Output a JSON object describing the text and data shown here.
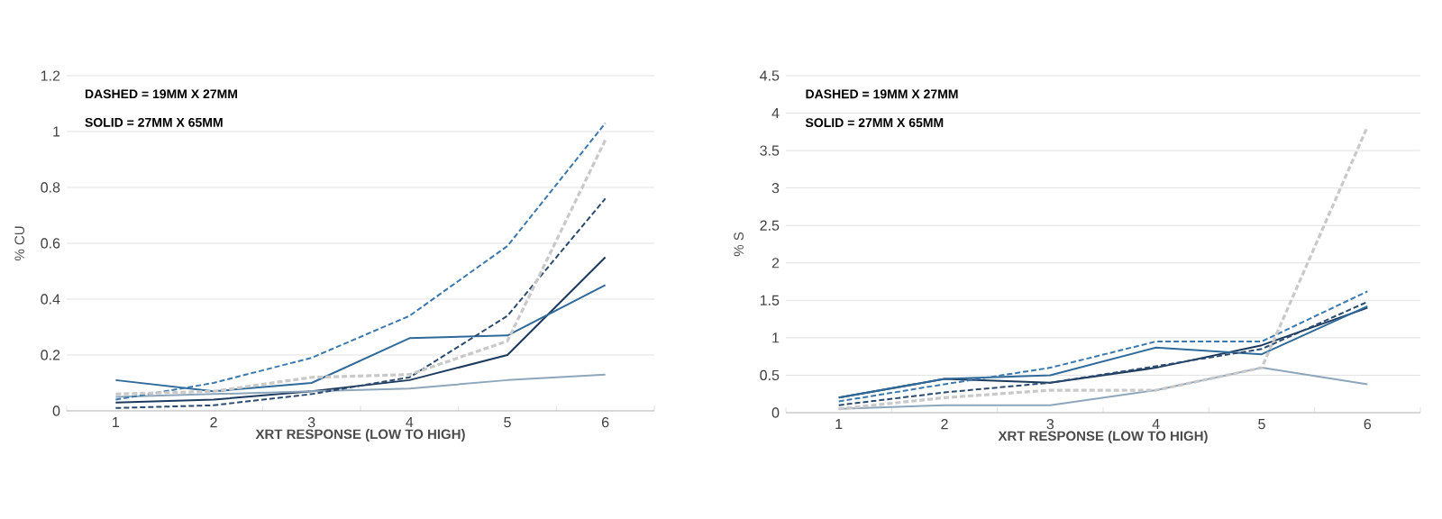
{
  "chart_data": [
    {
      "type": "line",
      "ylabel": "% CU",
      "xlabel": "XRT RESPONSE (LOW TO HIGH)",
      "categories": [
        "1",
        "2",
        "3",
        "4",
        "5",
        "6"
      ],
      "ylim": [
        0,
        1.2
      ],
      "yticks": [
        0,
        0.2,
        0.4,
        0.6,
        0.8,
        1,
        1.2
      ],
      "grid": "y",
      "legend": false,
      "marker": "none",
      "annotations": [
        "DASHED = 19MM X 27MM",
        "SOLID     = 27MM X 65MM"
      ],
      "series": [
        {
          "color": "#1c3a5e",
          "line_style": "solid",
          "values": [
            0.03,
            0.04,
            0.07,
            0.11,
            0.2,
            0.55
          ]
        },
        {
          "color": "#2f6a9a",
          "line_style": "solid",
          "values": [
            0.11,
            0.07,
            0.1,
            0.26,
            0.27,
            0.45
          ]
        },
        {
          "color": "#8ea6bb",
          "line_style": "solid",
          "values": [
            0.05,
            0.06,
            0.07,
            0.08,
            0.11,
            0.13
          ]
        },
        {
          "color": "#3b78ad",
          "line_style": "dashed",
          "values": [
            0.04,
            0.1,
            0.19,
            0.34,
            0.59,
            1.03
          ]
        },
        {
          "color": "#2b4a70",
          "line_style": "dashed",
          "values": [
            0.01,
            0.02,
            0.06,
            0.12,
            0.34,
            0.76
          ]
        },
        {
          "color": "#c9c9c9",
          "line_style": "dashed",
          "values": [
            0.06,
            0.07,
            0.12,
            0.13,
            0.25,
            0.97
          ]
        }
      ]
    },
    {
      "type": "line",
      "ylabel": "% S",
      "xlabel": "XRT RESPONSE (LOW TO HIGH)",
      "categories": [
        "1",
        "2",
        "3",
        "4",
        "5",
        "6"
      ],
      "ylim": [
        0,
        4.5
      ],
      "yticks": [
        0,
        0.5,
        1,
        1.5,
        2,
        2.5,
        3,
        3.5,
        4,
        4.5
      ],
      "grid": "y",
      "legend": false,
      "marker": "none",
      "annotations": [
        "DASHED = 19MM X 27MM",
        "SOLID     = 27MM X 65MM"
      ],
      "series": [
        {
          "color": "#1c3a5e",
          "line_style": "solid",
          "values": [
            0.2,
            0.45,
            0.4,
            0.6,
            0.9,
            1.4
          ]
        },
        {
          "color": "#2f6a9a",
          "line_style": "solid",
          "values": [
            0.2,
            0.45,
            0.5,
            0.87,
            0.78,
            1.42
          ]
        },
        {
          "color": "#8ea6bb",
          "line_style": "solid",
          "values": [
            0.05,
            0.1,
            0.1,
            0.3,
            0.6,
            0.38
          ]
        },
        {
          "color": "#3b78ad",
          "line_style": "dashed",
          "values": [
            0.15,
            0.38,
            0.6,
            0.95,
            0.95,
            1.62
          ]
        },
        {
          "color": "#2b4a70",
          "line_style": "dashed",
          "values": [
            0.1,
            0.27,
            0.4,
            0.62,
            0.85,
            1.48
          ]
        },
        {
          "color": "#c9c9c9",
          "line_style": "dashed",
          "values": [
            0.05,
            0.2,
            0.3,
            0.3,
            0.6,
            3.82
          ]
        }
      ]
    }
  ]
}
